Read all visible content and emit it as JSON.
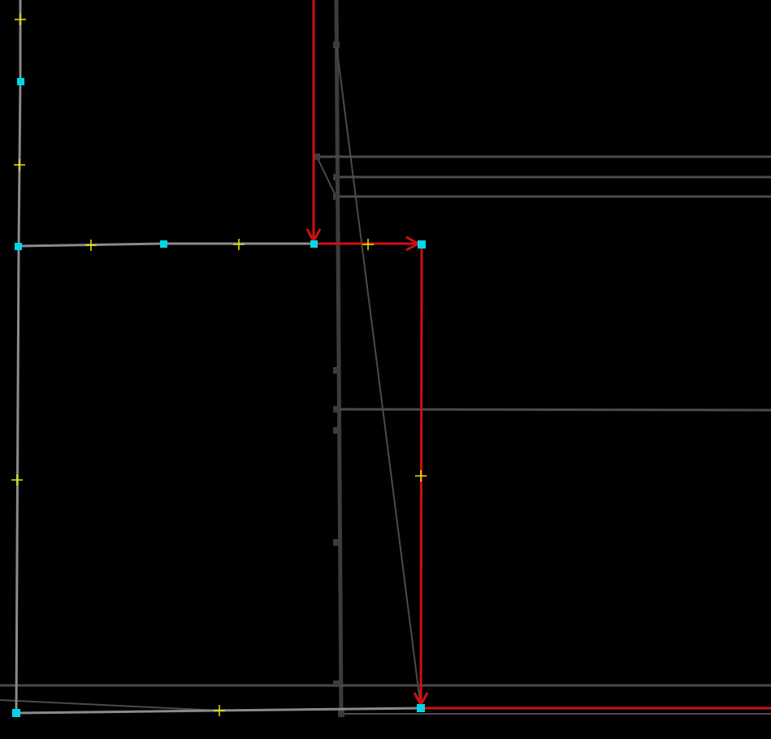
{
  "colors": {
    "background": "#000000",
    "way": "#3c3c3c",
    "way_light": "#8a8a8a",
    "selected_path": "#d01010",
    "node": "#00d8e8",
    "midpoint": "#e8e800"
  },
  "icons": {
    "node": "cyan-square-node-icon",
    "midpoint": "yellow-plus-midpoint-icon",
    "direction": "red-arrowhead-icon"
  }
}
